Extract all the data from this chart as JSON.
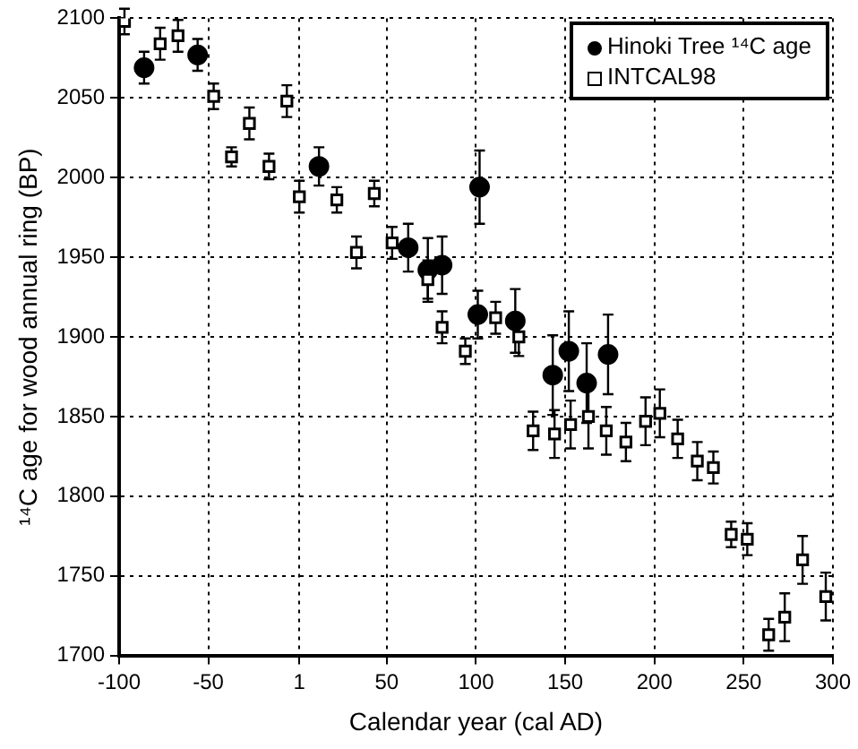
{
  "chart_data": {
    "type": "scatter",
    "xlabel": "Calendar year (cal AD)",
    "ylabel": "¹⁴C age for wood annual ring (BP)",
    "xlim": [
      -100,
      300
    ],
    "xticks": [
      -100,
      -50,
      1,
      50,
      100,
      150,
      200,
      250,
      300
    ],
    "ylim": [
      1700,
      2100
    ],
    "yticks": [
      1700,
      1750,
      1800,
      1850,
      1900,
      1950,
      2000,
      2050,
      2100
    ],
    "grid": true,
    "legend": "top right",
    "series": [
      {
        "name": "Hinoki Tree ¹⁴C age",
        "color": "#000000",
        "marker": "circle",
        "x": [
          -86,
          -56,
          12,
          62,
          73,
          81,
          102,
          101,
          122,
          143,
          152,
          162,
          174
        ],
        "values": [
          2069,
          2077,
          2007,
          1956,
          1942,
          1945,
          1994,
          1914,
          1910,
          1876,
          1891,
          1871,
          1889
        ],
        "errors": [
          10,
          10,
          12,
          15,
          20,
          18,
          23,
          15,
          20,
          25,
          25,
          25,
          25
        ]
      },
      {
        "name": "INTCAL98",
        "color": "#000000",
        "marker": "square",
        "x": [
          -97,
          -77,
          -67,
          -47,
          -37,
          -27,
          -16,
          -6,
          1,
          22,
          33,
          43,
          53,
          73,
          81,
          94,
          111,
          124,
          132,
          144,
          153,
          163,
          173,
          184,
          195,
          203,
          213,
          224,
          233,
          243,
          252,
          264,
          273,
          283,
          296
        ],
        "values": [
          2098,
          2084,
          2089,
          2051,
          2013,
          2034,
          2007,
          2048,
          1988,
          1986,
          1953,
          1990,
          1959,
          1936,
          1906,
          1891,
          1912,
          1900,
          1841,
          1839,
          1845,
          1850,
          1841,
          1834,
          1847,
          1852,
          1836,
          1822,
          1818,
          1776,
          1773,
          1713,
          1724,
          1760,
          1737
        ],
        "errors": [
          8,
          10,
          10,
          8,
          6,
          10,
          8,
          10,
          10,
          8,
          10,
          8,
          10,
          12,
          10,
          8,
          10,
          12,
          12,
          15,
          15,
          20,
          15,
          12,
          15,
          15,
          12,
          12,
          10,
          8,
          10,
          10,
          15,
          15,
          15
        ]
      }
    ]
  }
}
